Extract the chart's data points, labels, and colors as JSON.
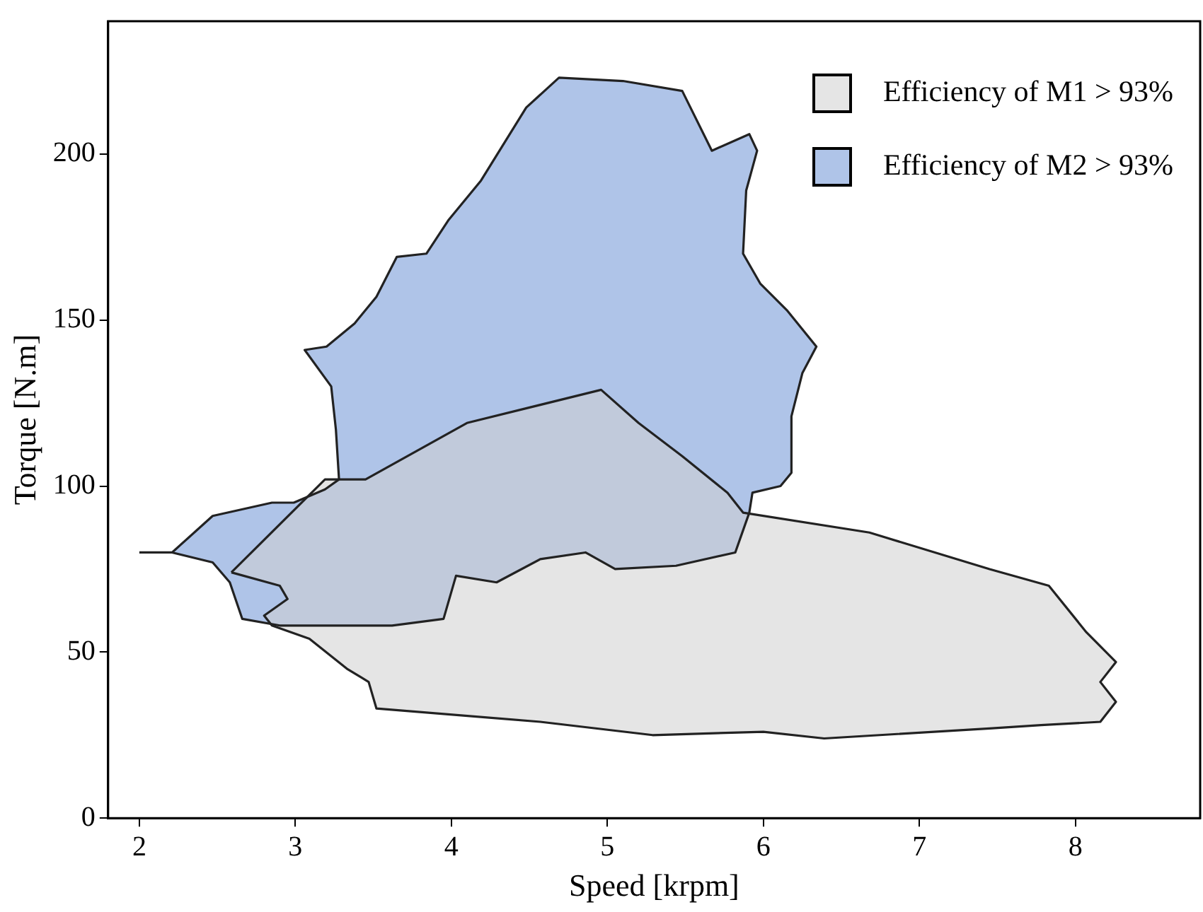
{
  "chart_data": {
    "type": "area",
    "xlabel": "Speed [krpm]",
    "ylabel": "Torque [N.m]",
    "xlim": [
      1.8,
      8.8
    ],
    "ylim": [
      0,
      240
    ],
    "xticks": [
      2,
      3,
      4,
      5,
      6,
      7,
      8
    ],
    "yticks": [
      0,
      50,
      100,
      150,
      200
    ],
    "grid": false,
    "legend": "top right",
    "series": [
      {
        "name": "Efficiency of M1 > 93%",
        "color": "#d0d0d0",
        "x": [
          2.59,
          3.19,
          3.45,
          4.1,
          4.96,
          5.2,
          5.48,
          5.77,
          5.87,
          6.68,
          7.45,
          7.83,
          8.07,
          8.26,
          8.16,
          8.26,
          8.16,
          7.78,
          7.45,
          6.39,
          6.0,
          5.29,
          4.57,
          3.52,
          3.47,
          3.33,
          3.09,
          2.85,
          2.8,
          2.95,
          2.9,
          2.59
        ],
        "values": [
          74,
          102,
          102,
          119,
          129,
          119,
          109,
          98,
          92,
          86,
          75,
          70,
          56,
          47,
          41,
          35,
          29,
          28,
          27,
          24,
          26,
          25,
          29,
          33,
          41,
          45,
          54,
          58,
          61,
          66,
          70,
          74
        ]
      },
      {
        "name": "Efficiency of M2 > 93%",
        "color": "#a6bee6",
        "x": [
          2.0,
          2.21,
          2.47,
          2.85,
          2.99,
          3.19,
          3.28,
          3.26,
          3.23,
          3.06,
          3.2,
          3.38,
          3.52,
          3.65,
          3.84,
          3.98,
          4.19,
          4.48,
          4.69,
          5.1,
          5.48,
          5.67,
          5.91,
          5.96,
          5.89,
          5.87,
          5.98,
          6.15,
          6.34,
          6.25,
          6.18,
          6.18,
          6.11,
          5.93,
          5.91,
          5.82,
          5.44,
          5.05,
          4.86,
          4.57,
          4.29,
          4.03,
          3.95,
          3.62,
          3.23,
          2.9,
          2.66,
          2.58,
          2.47,
          2.21,
          2.0
        ],
        "values": [
          80,
          80,
          91,
          95,
          95,
          99,
          102,
          117,
          130,
          141,
          142,
          149,
          157,
          169,
          170,
          180,
          192,
          214,
          223,
          222,
          219,
          201,
          206,
          201,
          189,
          170,
          161,
          153,
          142,
          134,
          121,
          104,
          100,
          98,
          92,
          80,
          76,
          75,
          80,
          78,
          71,
          73,
          60,
          58,
          58,
          58,
          60,
          71,
          77,
          80,
          80
        ]
      }
    ]
  }
}
